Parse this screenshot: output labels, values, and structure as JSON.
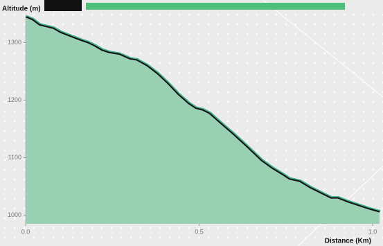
{
  "chart_data": {
    "type": "area",
    "xlabel": "Distance (Km)",
    "ylabel": "Altitude (m)",
    "x": [
      0.0,
      0.02,
      0.04,
      0.06,
      0.08,
      0.1,
      0.13,
      0.16,
      0.18,
      0.2,
      0.22,
      0.24,
      0.27,
      0.3,
      0.32,
      0.35,
      0.38,
      0.41,
      0.44,
      0.47,
      0.49,
      0.51,
      0.53,
      0.56,
      0.6,
      0.64,
      0.68,
      0.71,
      0.74,
      0.76,
      0.79,
      0.82,
      0.85,
      0.88,
      0.9,
      0.93,
      0.96,
      0.99,
      1.02
    ],
    "series": [
      {
        "name": "Altitude",
        "color": "#111111",
        "fill": "#99cfb3",
        "values": [
          1345,
          1340,
          1331,
          1328,
          1325,
          1318,
          1311,
          1304,
          1300,
          1294,
          1287,
          1283,
          1280,
          1272,
          1270,
          1260,
          1246,
          1229,
          1210,
          1194,
          1186,
          1183,
          1177,
          1161,
          1140,
          1118,
          1095,
          1082,
          1071,
          1063,
          1059,
          1048,
          1039,
          1030,
          1030,
          1023,
          1017,
          1011,
          1006
        ]
      }
    ],
    "xlim": [
      0,
      1.02
    ],
    "ylim": [
      985,
      1350
    ],
    "xticks": [
      {
        "value": 0,
        "label": "0.0"
      },
      {
        "value": 0.5,
        "label": "0.5"
      },
      {
        "value": 1,
        "label": "1.0"
      }
    ],
    "yticks": [
      1000,
      1100,
      1200,
      1300
    ]
  }
}
